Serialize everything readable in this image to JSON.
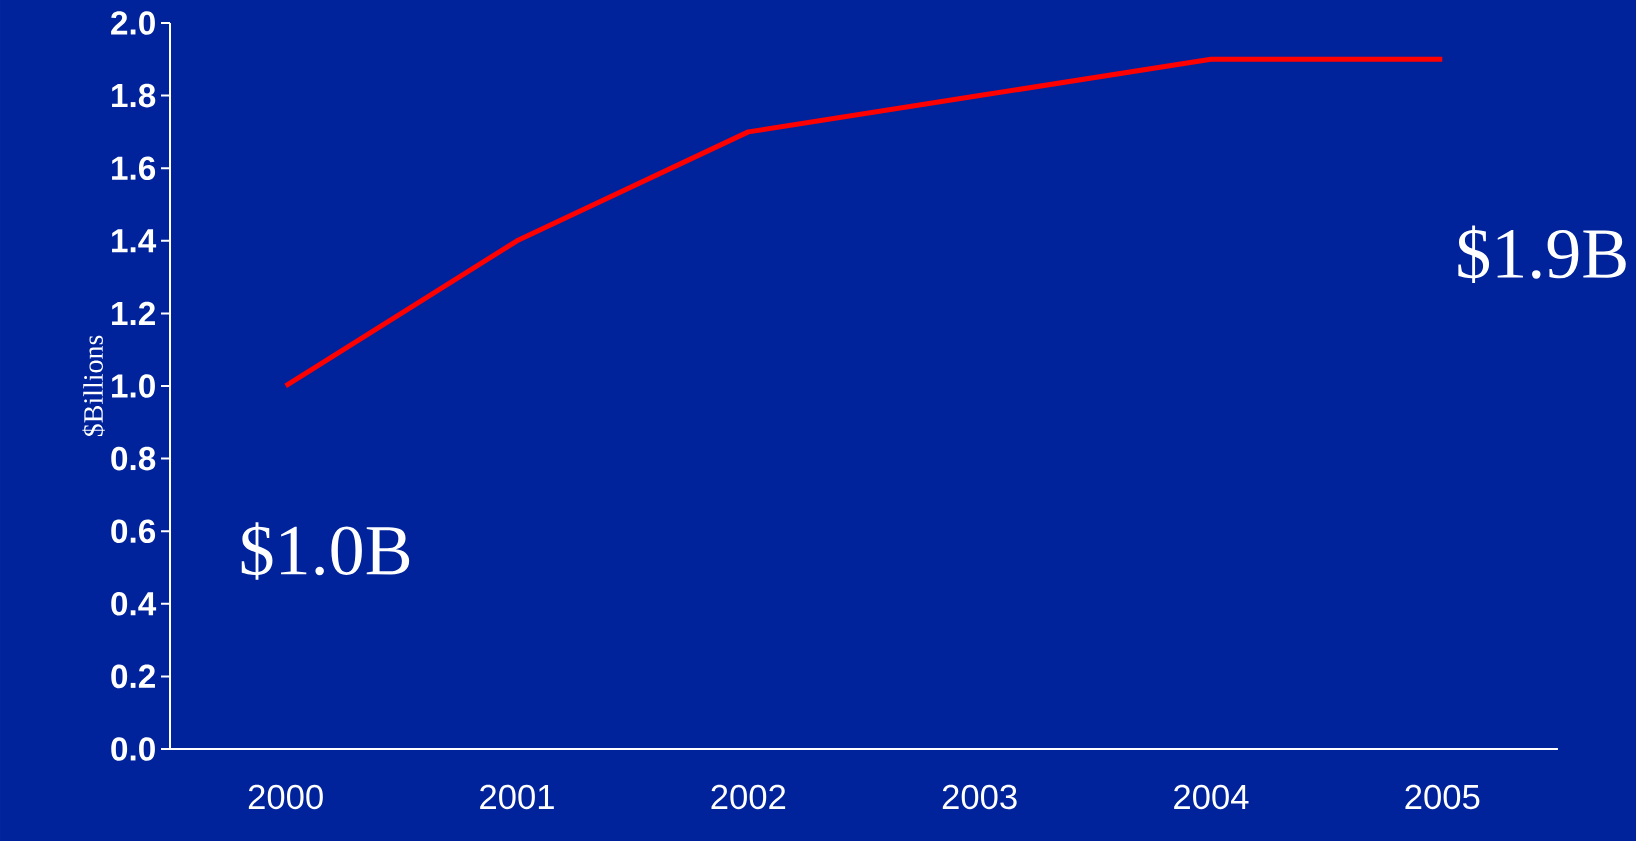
{
  "chart_data": {
    "type": "line",
    "ylabel": "$Billions",
    "categories": [
      "2000",
      "2001",
      "2002",
      "2003",
      "2004",
      "2005"
    ],
    "series": [
      {
        "color": "#ff0000",
        "values": [
          1.0,
          1.4,
          1.7,
          1.8,
          1.9,
          1.9
        ]
      }
    ],
    "ylim": [
      0,
      2.0
    ],
    "yticks": [
      {
        "value": 0,
        "label": "0.0"
      },
      {
        "value": 0.2,
        "label": "0.2"
      },
      {
        "value": 0.4,
        "label": "0.4"
      },
      {
        "value": 0.6,
        "label": "0.6"
      },
      {
        "value": 0.8,
        "label": "0.8"
      },
      {
        "value": 1.0,
        "label": "1.0"
      },
      {
        "value": 1.2,
        "label": "1.2"
      },
      {
        "value": 1.4,
        "label": "1.4"
      },
      {
        "value": 1.6,
        "label": "1.6"
      },
      {
        "value": 1.8,
        "label": "1.8"
      },
      {
        "value": 2.0,
        "label": "2.0"
      }
    ],
    "annotations": [
      {
        "text": "$1.0B",
        "x": "2000",
        "y": 1.0
      },
      {
        "text": "$1.9B",
        "x": "2005",
        "y": 1.9
      }
    ],
    "marker": "none",
    "line_style": "solid"
  }
}
